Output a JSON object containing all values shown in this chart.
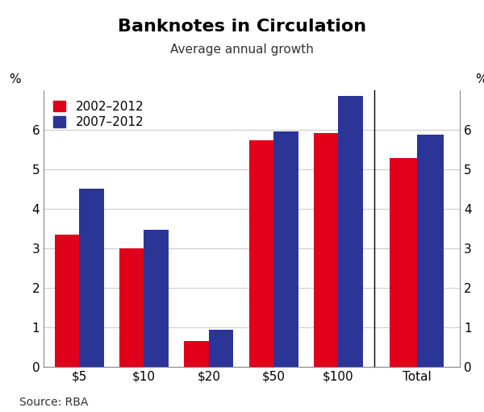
{
  "title": "Banknotes in Circulation",
  "subtitle": "Average annual growth",
  "categories": [
    "$5",
    "$10",
    "$20",
    "$50",
    "$100"
  ],
  "total_category": "Total",
  "series1_label": "2002–2012",
  "series2_label": "2007–2012",
  "series1_color": "#e0001a",
  "series2_color": "#2b3595",
  "series1_values": [
    3.35,
    3.0,
    0.65,
    5.75,
    5.92
  ],
  "series2_values": [
    4.52,
    3.48,
    0.93,
    5.97,
    6.87
  ],
  "total_series1": 5.3,
  "total_series2": 5.88,
  "ylim": [
    0,
    7.0
  ],
  "yticks": [
    0,
    1,
    2,
    3,
    4,
    5,
    6
  ],
  "ylabel": "%",
  "source": "Source: RBA",
  "background_color": "#ffffff",
  "bar_width": 0.38,
  "title_fontsize": 16,
  "subtitle_fontsize": 11,
  "tick_fontsize": 11,
  "legend_fontsize": 11,
  "source_fontsize": 10
}
